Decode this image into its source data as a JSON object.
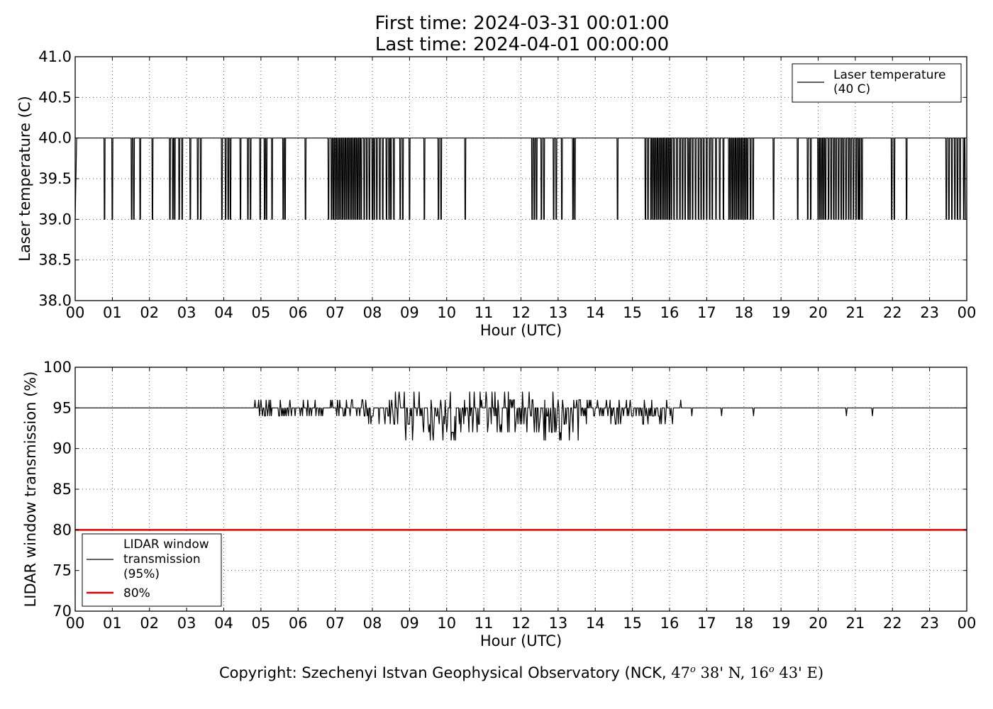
{
  "title_line1": "First time: 2024-03-31 00:01:00",
  "title_line2": "Last time: 2024-04-01 00:00:00",
  "copyright_text": "Copyright: Szechenyi Istvan Geophysical Observatory (NCK,",
  "copyright_lat_deg": "47",
  "copyright_lat_min": "38' N,",
  "copyright_lon_deg": "16",
  "copyright_lon_min": "43' E)",
  "copyright_deg_symbol": "o",
  "colors": {
    "series": "#000000",
    "threshold": "#e00000",
    "grid": "#555555"
  },
  "chart_data": [
    {
      "type": "line",
      "xlabel": "Hour (UTC)",
      "ylabel": "Laser temperature (C)",
      "xlim": [
        0,
        24
      ],
      "ylim": [
        38.0,
        41.0
      ],
      "xticks": [
        "00",
        "01",
        "02",
        "03",
        "04",
        "05",
        "06",
        "07",
        "08",
        "09",
        "10",
        "11",
        "12",
        "13",
        "14",
        "15",
        "16",
        "17",
        "18",
        "19",
        "20",
        "21",
        "22",
        "23",
        "00"
      ],
      "yticks": [
        "38.0",
        "38.5",
        "39.0",
        "39.5",
        "40.0",
        "40.5",
        "41.0"
      ],
      "grid": true,
      "legend_position": "top-right",
      "series": [
        {
          "name": "Laser temperature (40 C)",
          "legend_lines": [
            "Laser temperature",
            "(40 C)"
          ],
          "baseline": 40.0,
          "drop_value": 39.0,
          "drops_at_hour": [
            0.02,
            0.79,
            1.0,
            1.52,
            1.58,
            1.75,
            2.08,
            2.55,
            2.63,
            2.68,
            2.8,
            2.88,
            3.1,
            3.3,
            3.38,
            3.95,
            4.05,
            4.12,
            4.18,
            4.45,
            4.65,
            4.72,
            4.98,
            5.1,
            5.15,
            5.3,
            5.6,
            5.65,
            6.2,
            6.82,
            6.9,
            6.95,
            7.0,
            7.05,
            7.1,
            7.15,
            7.2,
            7.25,
            7.3,
            7.35,
            7.4,
            7.45,
            7.5,
            7.55,
            7.6,
            7.65,
            7.7,
            7.78,
            7.85,
            7.92,
            8.0,
            8.05,
            8.12,
            8.2,
            8.28,
            8.38,
            8.45,
            8.5,
            8.58,
            8.75,
            8.82,
            9.0,
            9.4,
            9.78,
            9.85,
            10.5,
            12.3,
            12.36,
            12.42,
            12.55,
            12.62,
            12.88,
            12.95,
            13.1,
            13.4,
            13.45,
            14.6,
            15.35,
            15.42,
            15.5,
            15.55,
            15.6,
            15.65,
            15.7,
            15.75,
            15.8,
            15.85,
            15.9,
            15.95,
            16.0,
            16.05,
            16.12,
            16.2,
            16.28,
            16.35,
            16.42,
            16.5,
            16.55,
            16.62,
            16.7,
            16.78,
            16.85,
            16.92,
            17.0,
            17.08,
            17.15,
            17.25,
            17.35,
            17.45,
            17.6,
            17.65,
            17.7,
            17.75,
            17.8,
            17.85,
            17.9,
            17.95,
            18.0,
            18.05,
            18.1,
            18.18,
            18.25,
            18.8,
            19.45,
            19.72,
            19.8,
            20.0,
            20.05,
            20.1,
            20.15,
            20.2,
            20.28,
            20.35,
            20.42,
            20.48,
            20.55,
            20.62,
            20.68,
            20.75,
            20.82,
            20.88,
            20.95,
            21.02,
            21.08,
            21.12,
            21.18,
            21.98,
            22.05,
            22.38,
            23.45,
            23.52,
            23.6,
            23.68,
            23.75,
            23.82,
            23.92
          ]
        }
      ]
    },
    {
      "type": "line",
      "xlabel": "Hour (UTC)",
      "ylabel": "LIDAR window transmission (%)",
      "xlim": [
        0,
        24
      ],
      "ylim": [
        70,
        100
      ],
      "xticks": [
        "00",
        "01",
        "02",
        "03",
        "04",
        "05",
        "06",
        "07",
        "08",
        "09",
        "10",
        "11",
        "12",
        "13",
        "14",
        "15",
        "16",
        "17",
        "18",
        "19",
        "20",
        "21",
        "22",
        "23",
        "00"
      ],
      "yticks": [
        "70",
        "75",
        "80",
        "85",
        "90",
        "95",
        "100"
      ],
      "grid": true,
      "legend_position": "bottom-left",
      "series": [
        {
          "name": "LIDAR window transmission (95%)",
          "legend_lines": [
            "LIDAR window",
            "transmission",
            "(95%)"
          ],
          "baseline": 95,
          "noisy_segments": [
            {
              "from": 4.8,
              "to": 7.5,
              "min": 94,
              "max": 96
            },
            {
              "from": 7.5,
              "to": 8.6,
              "min": 93,
              "max": 96
            },
            {
              "from": 8.6,
              "to": 11.0,
              "min": 91,
              "max": 97
            },
            {
              "from": 11.0,
              "to": 13.6,
              "min": 91,
              "max": 97
            },
            {
              "from": 13.6,
              "to": 16.1,
              "min": 93,
              "max": 96
            }
          ],
          "spikes": [
            [
              16.3,
              96
            ],
            [
              16.6,
              94
            ],
            [
              17.4,
              94
            ],
            [
              18.25,
              94
            ],
            [
              20.75,
              94
            ],
            [
              21.45,
              94
            ]
          ]
        },
        {
          "name": "80%",
          "constant": 80
        }
      ]
    }
  ]
}
